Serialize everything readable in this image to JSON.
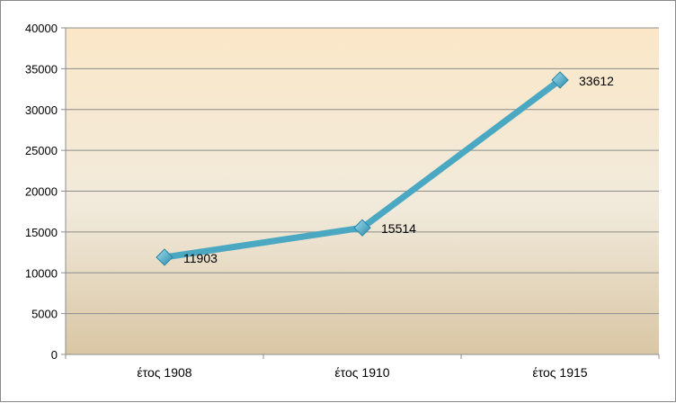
{
  "chart_data": {
    "type": "line",
    "categories": [
      "έτος 1908",
      "έτος 1910",
      "έτος 1915"
    ],
    "series": [
      {
        "values": [
          11903,
          15514,
          33612
        ]
      }
    ],
    "data_labels": [
      "11903",
      "15514",
      "33612"
    ],
    "ylim": [
      0,
      40000
    ],
    "yticks": [
      0,
      5000,
      10000,
      15000,
      20000,
      25000,
      30000,
      35000,
      40000
    ],
    "ytick_labels": [
      "0",
      "5000",
      "10000",
      "15000",
      "20000",
      "25000",
      "30000",
      "35000",
      "40000"
    ],
    "grid": true,
    "legend": "none",
    "colors": {
      "line": "#4aa8c2",
      "marker": "#3fa3c4",
      "plot_bg_top": "#fbe7c8",
      "plot_bg_bottom": "#d9c6a4",
      "grid": "#8c8c8c"
    }
  }
}
